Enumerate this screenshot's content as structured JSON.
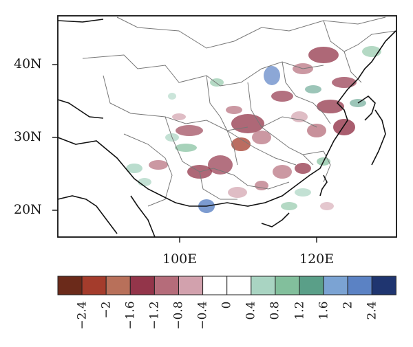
{
  "map": {
    "lat_ticks": [
      "40N",
      "30N",
      "20N"
    ],
    "lon_ticks": [
      "100E",
      "120E"
    ]
  },
  "colorbar": {
    "colors": [
      "#6b2a1a",
      "#a43c2c",
      "#b8705a",
      "#93354a",
      "#b56c7a",
      "#d2a1ad",
      "#ffffff",
      "#ffffff",
      "#a9d4c2",
      "#82bf9c",
      "#5a9f88",
      "#7ba3d3",
      "#5b82c4",
      "#1f3570"
    ],
    "labels": [
      "−2.4",
      "−2",
      "−1.6",
      "−1.2",
      "−0.8",
      "−0.4",
      "0",
      "0.4",
      "0.8",
      "1.2",
      "1.6",
      "2",
      "2.4"
    ]
  }
}
